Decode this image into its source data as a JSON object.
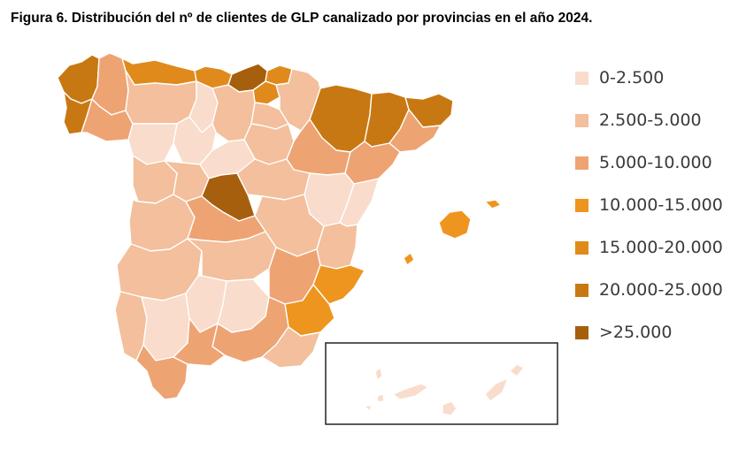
{
  "title": "Figura 6. Distribución del nº de clientes de GLP canalizado por provincias en el año 2024.",
  "legend": [
    {
      "label": "0-2.500",
      "color": "#f9dccb"
    },
    {
      "label": "2.500-5.000",
      "color": "#f3bf9c"
    },
    {
      "label": "5.000-10.000",
      "color": "#eea373"
    },
    {
      "label": "10.000-15.000",
      "color": "#ee951f"
    },
    {
      "label": "15.000-20.000",
      "color": "#e08a1c"
    },
    {
      "label": "20.000-25.000",
      "color": "#c87812"
    },
    {
      "label": ">25.000",
      "color": "#a65f0d"
    }
  ],
  "regions": [
    {
      "name": "A Coruña",
      "class": 5
    },
    {
      "name": "Lugo",
      "class": 2
    },
    {
      "name": "Pontevedra",
      "class": 5
    },
    {
      "name": "Ourense",
      "class": 2
    },
    {
      "name": "Asturias",
      "class": 4
    },
    {
      "name": "Cantabria",
      "class": 4
    },
    {
      "name": "Bizkaia",
      "class": 6
    },
    {
      "name": "Gipuzkoa",
      "class": 4
    },
    {
      "name": "Araba",
      "class": 4
    },
    {
      "name": "Navarra",
      "class": 1
    },
    {
      "name": "León",
      "class": 1
    },
    {
      "name": "Palencia",
      "class": 0
    },
    {
      "name": "Burgos",
      "class": 1
    },
    {
      "name": "La Rioja",
      "class": 1
    },
    {
      "name": "Zamora",
      "class": 0
    },
    {
      "name": "Valladolid",
      "class": 0
    },
    {
      "name": "Soria",
      "class": 1
    },
    {
      "name": "Huesca",
      "class": 5
    },
    {
      "name": "Zaragoza",
      "class": 2
    },
    {
      "name": "Teruel",
      "class": 0
    },
    {
      "name": "Lleida",
      "class": 5
    },
    {
      "name": "Girona",
      "class": 5
    },
    {
      "name": "Barcelona",
      "class": 2
    },
    {
      "name": "Tarragona",
      "class": 2
    },
    {
      "name": "Salamanca",
      "class": 1
    },
    {
      "name": "Ávila",
      "class": 1
    },
    {
      "name": "Segovia",
      "class": 0
    },
    {
      "name": "Madrid",
      "class": 6
    },
    {
      "name": "Guadalajara",
      "class": 1
    },
    {
      "name": "Cuenca",
      "class": 1
    },
    {
      "name": "Castellón",
      "class": 0
    },
    {
      "name": "Valencia",
      "class": 1
    },
    {
      "name": "Cáceres",
      "class": 1
    },
    {
      "name": "Toledo",
      "class": 2
    },
    {
      "name": "Badajoz",
      "class": 1
    },
    {
      "name": "Ciudad Real",
      "class": 1
    },
    {
      "name": "Albacete",
      "class": 2
    },
    {
      "name": "Alicante",
      "class": 3
    },
    {
      "name": "Murcia",
      "class": 3
    },
    {
      "name": "Huelva",
      "class": 1
    },
    {
      "name": "Sevilla",
      "class": 0
    },
    {
      "name": "Córdoba",
      "class": 0
    },
    {
      "name": "Jaén",
      "class": 0
    },
    {
      "name": "Granada",
      "class": 2
    },
    {
      "name": "Almería",
      "class": 1
    },
    {
      "name": "Cádiz",
      "class": 2
    },
    {
      "name": "Málaga",
      "class": 2
    },
    {
      "name": "Illes Balears",
      "class": 3
    },
    {
      "name": "Canarias",
      "class": 0
    }
  ]
}
